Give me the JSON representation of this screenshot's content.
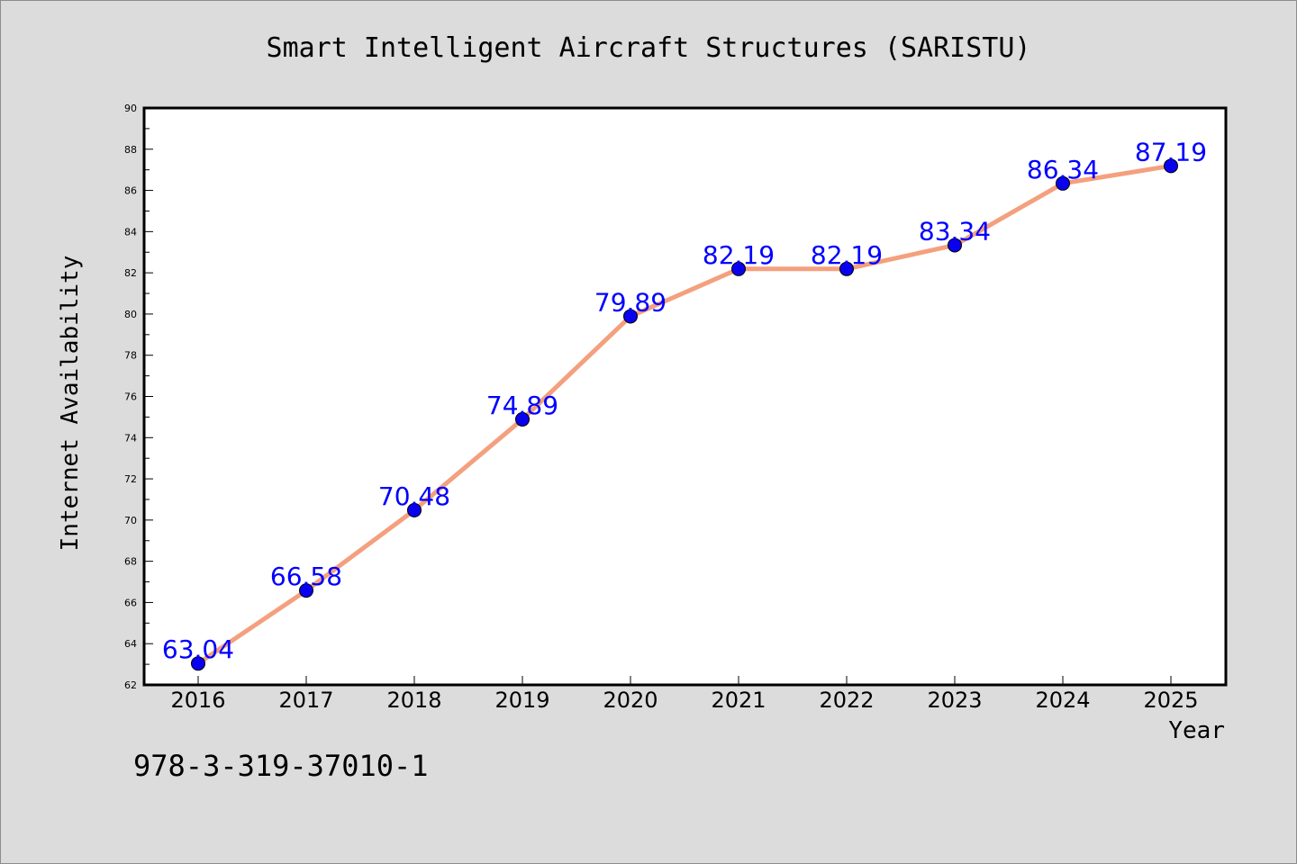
{
  "chart_data": {
    "type": "line",
    "title": "Smart Intelligent Aircraft Structures (SARISTU)",
    "xlabel": "Year",
    "ylabel": "Internet Availability",
    "categories": [
      "2016",
      "2017",
      "2018",
      "2019",
      "2020",
      "2021",
      "2022",
      "2023",
      "2024",
      "2025"
    ],
    "series": [
      {
        "values": [
          63.04,
          66.58,
          70.48,
          74.89,
          79.89,
          82.19,
          82.19,
          83.34,
          86.34,
          87.19
        ],
        "labels": [
          "63.04",
          "66.58",
          "70.48",
          "74.89",
          "79.89",
          "82.19",
          "82.19",
          "83.34",
          "86.34",
          "87.19"
        ],
        "line_color": "#f4a07e",
        "marker_color": "#0a00f0",
        "label_color": "#0000ff"
      }
    ],
    "ylim": [
      62,
      90
    ],
    "yticks": [
      "62",
      "64",
      "66",
      "68",
      "70",
      "72",
      "74",
      "76",
      "78",
      "80",
      "82",
      "84",
      "86",
      "88",
      "90"
    ],
    "grid": false,
    "legend": "none"
  },
  "footer": {
    "isbn": "978-3-319-37010-1"
  }
}
